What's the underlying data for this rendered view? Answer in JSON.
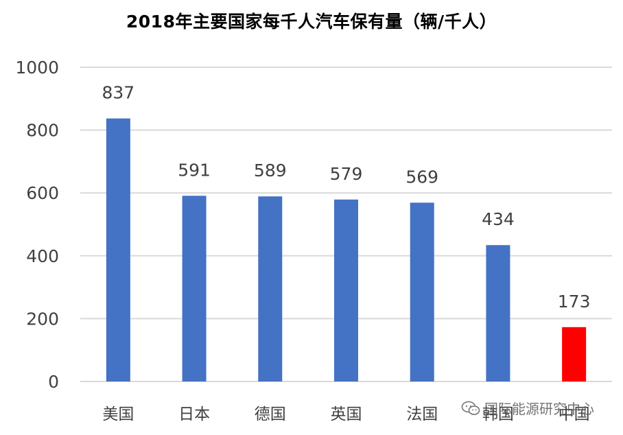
{
  "chart_data": {
    "type": "bar",
    "title": "2018年主要国家每千人汽车保有量（辆/千人）",
    "xlabel": "",
    "ylabel": "",
    "categories": [
      "美国",
      "日本",
      "德国",
      "英国",
      "法国",
      "韩国",
      "中国"
    ],
    "values": [
      837,
      591,
      589,
      579,
      569,
      434,
      173
    ],
    "ylim": [
      0,
      1000
    ],
    "yticks": [
      0,
      200,
      400,
      600,
      800,
      1000
    ],
    "grid": true,
    "legend": "none",
    "bar_color": "#4472C4",
    "highlight_color": "#FF0000",
    "highlight_category": "中国"
  },
  "watermark": {
    "text": "国际能源研究中心",
    "icon": "wechat-icon"
  }
}
